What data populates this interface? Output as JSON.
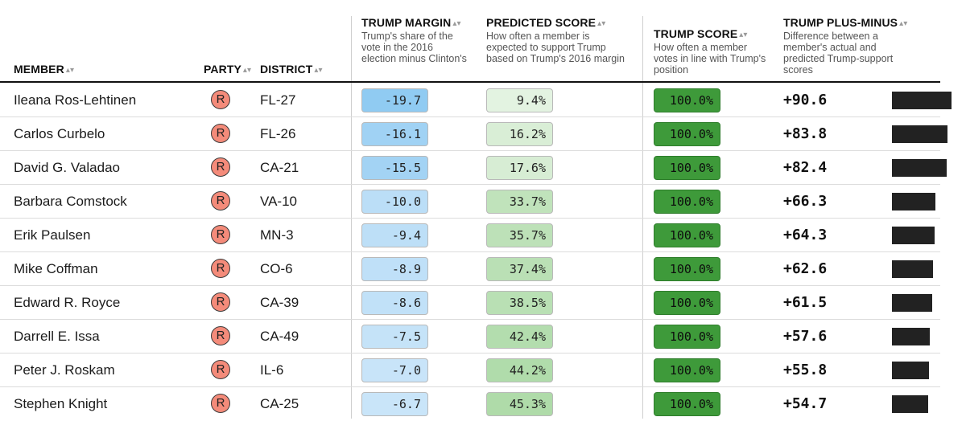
{
  "headers": {
    "member": "MEMBER",
    "party": "PARTY",
    "district": "DISTRICT",
    "trump_margin": "TRUMP MARGIN",
    "trump_margin_desc": "Trump's share of the vote in the 2016 election minus Clinton's",
    "predicted_score": "PREDICTED SCORE",
    "predicted_score_desc": "How often a member is expected to support Trump based on Trump's 2016 margin",
    "trump_score": "TRUMP SCORE",
    "trump_score_desc": "How often a member votes in line with Trump's position",
    "plus_minus": "TRUMP PLUS-MINUS",
    "plus_minus_desc": "Difference between a member's actual and predicted Trump-support scores",
    "sort_icon": "sort-arrows-icon"
  },
  "colors": {
    "republican": "#f48b7a",
    "trump_score_fill": "#3e9a3a",
    "bar": "#222222"
  },
  "rows": [
    {
      "member": "Ileana Ros-Lehtinen",
      "party": "R",
      "district": "FL-27",
      "trump_margin": "-19.7",
      "predicted_score": "9.4%",
      "trump_score": "100.0%",
      "plus_minus": "+90.6",
      "margin_value": -19.7,
      "predicted_value": 9.4,
      "plus_minus_value": 90.6
    },
    {
      "member": "Carlos Curbelo",
      "party": "R",
      "district": "FL-26",
      "trump_margin": "-16.1",
      "predicted_score": "16.2%",
      "trump_score": "100.0%",
      "plus_minus": "+83.8",
      "margin_value": -16.1,
      "predicted_value": 16.2,
      "plus_minus_value": 83.8
    },
    {
      "member": "David G. Valadao",
      "party": "R",
      "district": "CA-21",
      "trump_margin": "-15.5",
      "predicted_score": "17.6%",
      "trump_score": "100.0%",
      "plus_minus": "+82.4",
      "margin_value": -15.5,
      "predicted_value": 17.6,
      "plus_minus_value": 82.4
    },
    {
      "member": "Barbara Comstock",
      "party": "R",
      "district": "VA-10",
      "trump_margin": "-10.0",
      "predicted_score": "33.7%",
      "trump_score": "100.0%",
      "plus_minus": "+66.3",
      "margin_value": -10.0,
      "predicted_value": 33.7,
      "plus_minus_value": 66.3
    },
    {
      "member": "Erik Paulsen",
      "party": "R",
      "district": "MN-3",
      "trump_margin": "-9.4",
      "predicted_score": "35.7%",
      "trump_score": "100.0%",
      "plus_minus": "+64.3",
      "margin_value": -9.4,
      "predicted_value": 35.7,
      "plus_minus_value": 64.3
    },
    {
      "member": "Mike Coffman",
      "party": "R",
      "district": "CO-6",
      "trump_margin": "-8.9",
      "predicted_score": "37.4%",
      "trump_score": "100.0%",
      "plus_minus": "+62.6",
      "margin_value": -8.9,
      "predicted_value": 37.4,
      "plus_minus_value": 62.6
    },
    {
      "member": "Edward R. Royce",
      "party": "R",
      "district": "CA-39",
      "trump_margin": "-8.6",
      "predicted_score": "38.5%",
      "trump_score": "100.0%",
      "plus_minus": "+61.5",
      "margin_value": -8.6,
      "predicted_value": 38.5,
      "plus_minus_value": 61.5
    },
    {
      "member": "Darrell E. Issa",
      "party": "R",
      "district": "CA-49",
      "trump_margin": "-7.5",
      "predicted_score": "42.4%",
      "trump_score": "100.0%",
      "plus_minus": "+57.6",
      "margin_value": -7.5,
      "predicted_value": 42.4,
      "plus_minus_value": 57.6
    },
    {
      "member": "Peter J. Roskam",
      "party": "R",
      "district": "IL-6",
      "trump_margin": "-7.0",
      "predicted_score": "44.2%",
      "trump_score": "100.0%",
      "plus_minus": "+55.8",
      "margin_value": -7.0,
      "predicted_value": 44.2,
      "plus_minus_value": 55.8
    },
    {
      "member": "Stephen Knight",
      "party": "R",
      "district": "CA-25",
      "trump_margin": "-6.7",
      "predicted_score": "45.3%",
      "trump_score": "100.0%",
      "plus_minus": "+54.7",
      "margin_value": -6.7,
      "predicted_value": 45.3,
      "plus_minus_value": 54.7
    }
  ]
}
